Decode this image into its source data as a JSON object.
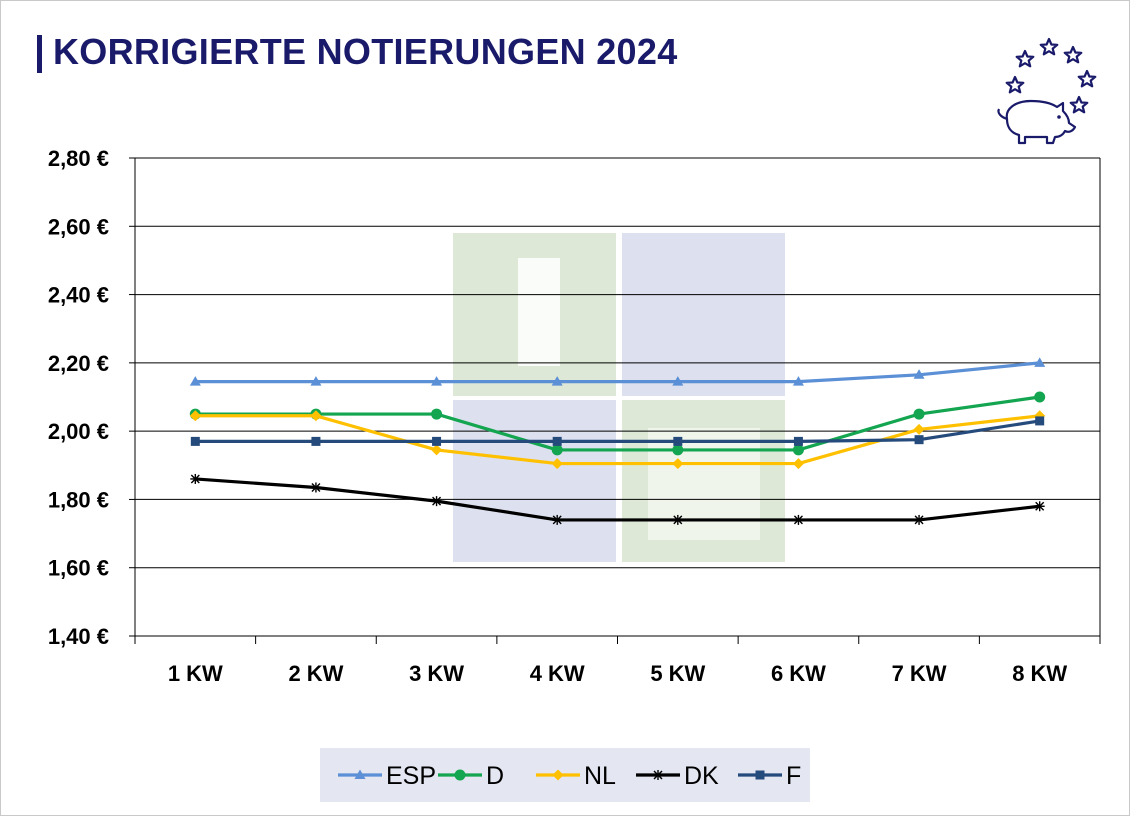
{
  "title": "KORRIGIERTE NOTIERUNGEN 2024",
  "logo": {
    "icon": "pig-with-stars-icon",
    "color": "#1a1a6b"
  },
  "watermark": {
    "text": "ISN",
    "colors": [
      "#dde8d6",
      "#dde0ee"
    ]
  },
  "chart_data": {
    "type": "line",
    "title": "KORRIGIERTE NOTIERUNGEN 2024",
    "categories": [
      "1 KW",
      "2 KW",
      "3 KW",
      "4 KW",
      "5 KW",
      "6 KW",
      "7 KW",
      "8 KW"
    ],
    "y_ticks": [
      "1,40 €",
      "1,60 €",
      "1,80 €",
      "2,00 €",
      "2,20 €",
      "2,40 €",
      "2,60 €",
      "2,80 €"
    ],
    "ylim": [
      1.4,
      2.8
    ],
    "y_step": 0.2,
    "grid": "horizontal",
    "legend_position": "bottom",
    "series": [
      {
        "name": "ESP",
        "color": "#5b8fd6",
        "marker": "triangle",
        "values": [
          2.145,
          2.145,
          2.145,
          2.145,
          2.145,
          2.145,
          2.165,
          2.2
        ]
      },
      {
        "name": "D",
        "color": "#13a550",
        "marker": "circle",
        "values": [
          2.05,
          2.05,
          2.05,
          1.945,
          1.945,
          1.945,
          2.05,
          2.1
        ]
      },
      {
        "name": "NL",
        "color": "#ffc000",
        "marker": "diamond",
        "values": [
          2.045,
          2.045,
          1.945,
          1.905,
          1.905,
          1.905,
          2.005,
          2.045
        ]
      },
      {
        "name": "DK",
        "color": "#000000",
        "marker": "star",
        "values": [
          1.86,
          1.835,
          1.795,
          1.74,
          1.74,
          1.74,
          1.74,
          1.78
        ]
      },
      {
        "name": "F",
        "color": "#254a7c",
        "marker": "square",
        "values": [
          1.97,
          1.97,
          1.97,
          1.97,
          1.97,
          1.97,
          1.975,
          2.03
        ]
      }
    ]
  }
}
